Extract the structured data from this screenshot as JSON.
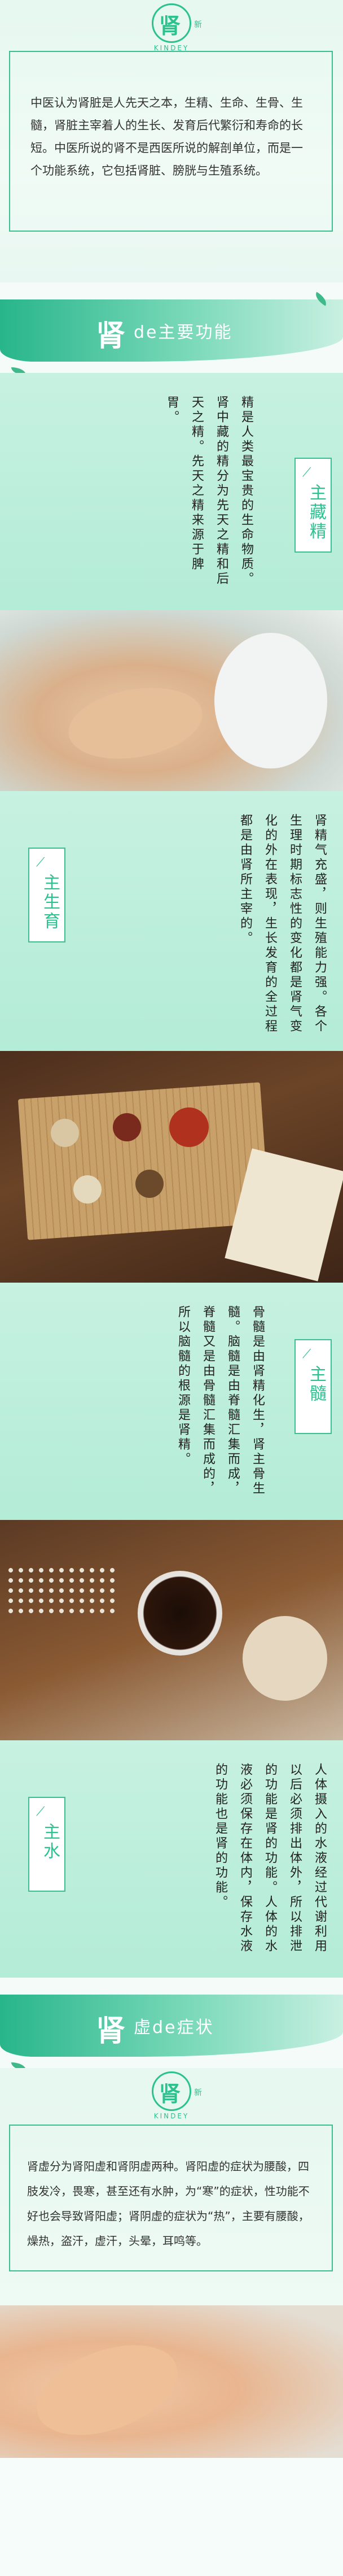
{
  "logo": {
    "mark": "肾",
    "sub": "新",
    "en": "KINDEY"
  },
  "intro": {
    "text": "中医认为肾脏是人先天之本，生精、生命、生骨、生髓，肾脏主宰着人的生长、发育后代繁衍和寿命的长短。中医所说的肾不是西医所说的解剖单位，而是一个功能系统，它包括肾脏、膀胱与生殖系统。"
  },
  "banner1": {
    "big": "肾",
    "rest": "de主要功能"
  },
  "tags": {
    "zangjing": "主藏精",
    "shengyu": "主生育",
    "sui": "主髓",
    "shui": "主水"
  },
  "texts": {
    "zangjing": "精是人类最宝贵的生命物质。肾中藏的精分为先天之精和后天之精。先天之精来源于脾胃。",
    "shengyu": "肾精气充盛，则生殖能力强。各个生理时期标志性的变化都是肾气变化的外在表现，生长发育的全过程都是由肾所主宰的。",
    "sui": "骨髓是由肾精化生，肾主骨生髓。脑髓是由脊髓汇集而成，脊髓又是由骨髓汇集而成的，所以脑髓的根源是肾精。",
    "shui": "人体摄入的水液经过代谢利用以后必须排出体外，所以排泄的功能是肾的功能。人体的水液必须保存在体内，保存水液的功能也是肾的功能。"
  },
  "banner2": {
    "big": "肾",
    "rest": "虚de症状"
  },
  "logo2": {
    "mark": "肾",
    "sub": "新",
    "en": "KINDEY"
  },
  "symptoms": {
    "text": "肾虚分为肾阳虚和肾阴虚两种。肾阳虚的症状为腰酸，四肢发冷，畏寒，甚至还有水肿，为“寒”的症状，性功能不好也会导致肾阳虚；肾阴虚的症状为“热”，主要有腰酸，燥热，盗汗，虚汗，头晕，耳鸣等。"
  },
  "colors": {
    "accent": "#2cc28f",
    "panel": "#c7f1e1"
  }
}
